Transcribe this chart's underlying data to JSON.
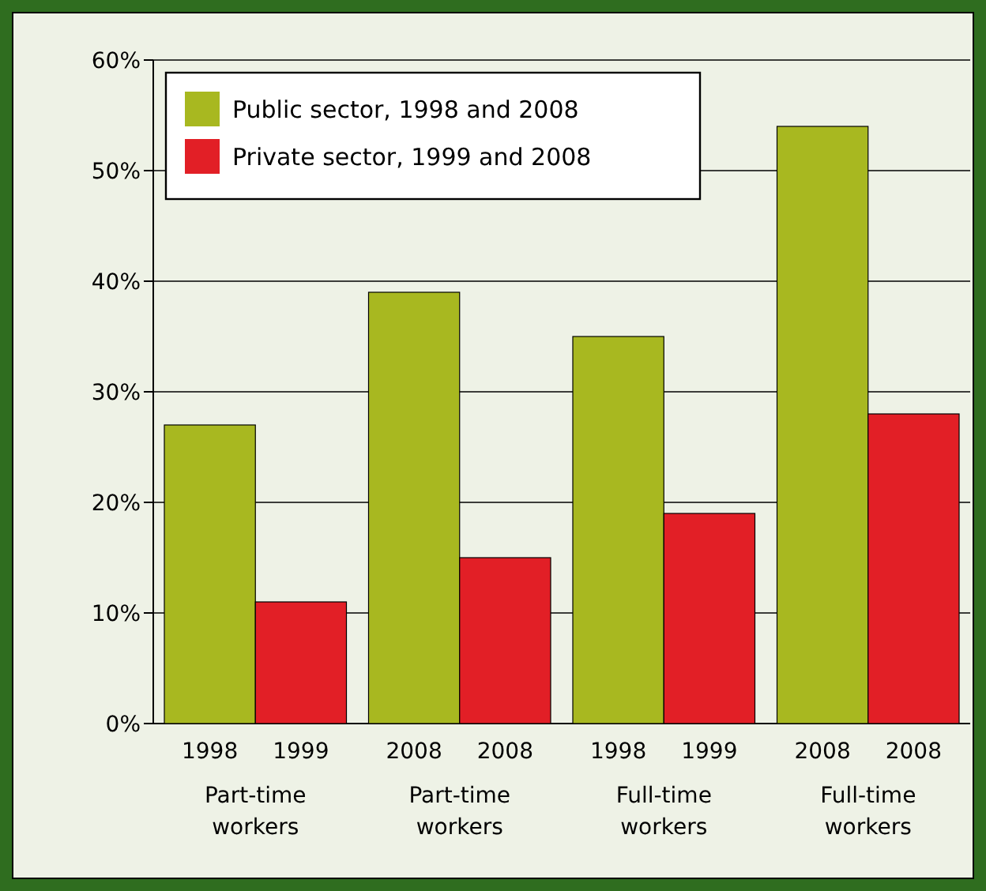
{
  "chart_data": {
    "type": "bar",
    "categories": [
      "1998",
      "1999",
      "2008",
      "2008",
      "1998",
      "1999",
      "2008",
      "2008"
    ],
    "series": [
      {
        "name": "Public sector, 1998 and 2008",
        "color": "#a8b820",
        "values": [
          27,
          null,
          39,
          null,
          35,
          null,
          54,
          null
        ]
      },
      {
        "name": "Private sector, 1999 and 2008",
        "color": "#e21f26",
        "values": [
          null,
          11,
          null,
          15,
          null,
          19,
          null,
          28
        ]
      }
    ],
    "ylim": [
      0,
      60
    ],
    "yticks": [
      {
        "value": 0,
        "label": "0%"
      },
      {
        "value": 10,
        "label": "10%"
      },
      {
        "value": 20,
        "label": "20%"
      },
      {
        "value": 30,
        "label": "30%"
      },
      {
        "value": 40,
        "label": "40%"
      },
      {
        "value": 50,
        "label": "50%"
      },
      {
        "value": 60,
        "label": "60%"
      }
    ],
    "grid": "y",
    "legend": "top left",
    "annotations": [
      "Part-time workers",
      "Part-time workers",
      "Full-time workers",
      "Full-time workers"
    ]
  }
}
